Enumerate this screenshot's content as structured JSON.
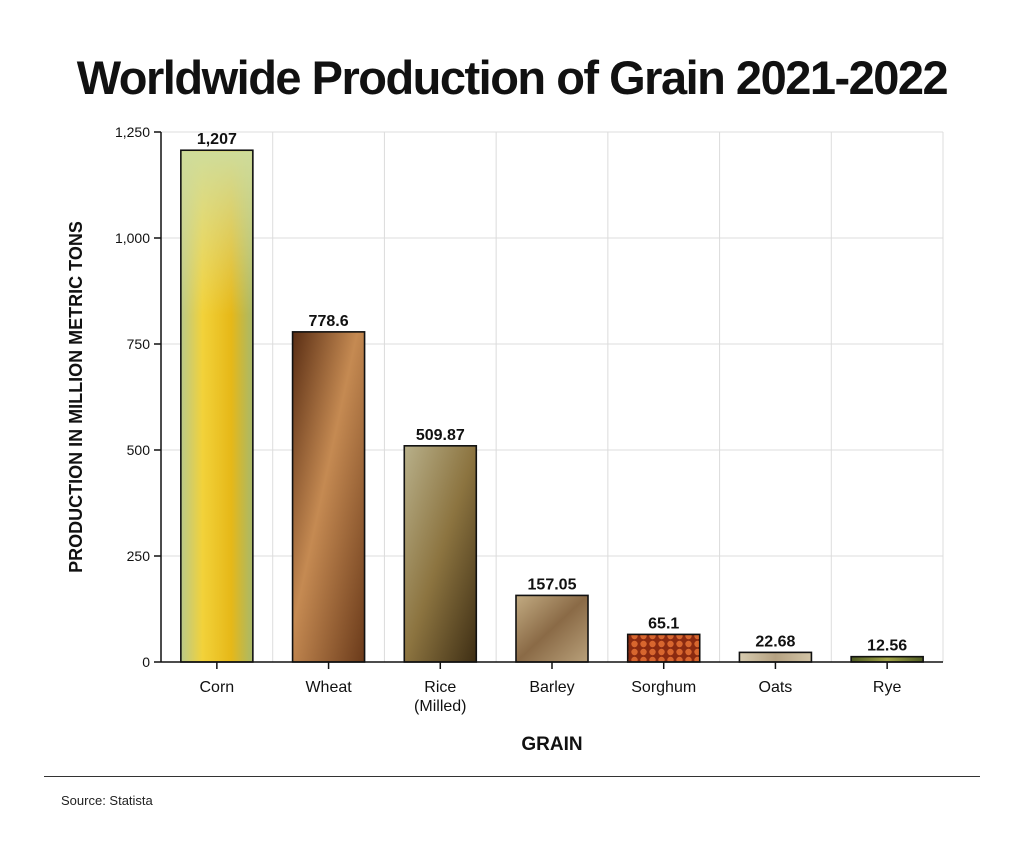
{
  "chart_data": {
    "type": "bar",
    "title": "Worldwide Production of Grain 2021-2022",
    "xlabel": "GRAIN",
    "ylabel": "PRODUCTION IN MILLION METRIC TONS",
    "categories": [
      "Corn",
      "Wheat",
      "Rice (Milled)",
      "Barley",
      "Sorghum",
      "Oats",
      "Rye"
    ],
    "category_lines": [
      [
        "Corn"
      ],
      [
        "Wheat"
      ],
      [
        "Rice",
        "(Milled)"
      ],
      [
        "Barley"
      ],
      [
        "Sorghum"
      ],
      [
        "Oats"
      ],
      [
        "Rye"
      ]
    ],
    "values": [
      1207,
      778.6,
      509.87,
      157.05,
      65.1,
      22.68,
      12.56
    ],
    "value_labels": [
      "1,207",
      "778.6",
      "509.87",
      "157.05",
      "65.1",
      "22.68",
      "12.56"
    ],
    "yticks": [
      0,
      250,
      500,
      750,
      1000,
      1250
    ],
    "ytick_labels": [
      "0",
      "250",
      "500",
      "750",
      "1,000",
      "1,250"
    ],
    "ylim": [
      0,
      1250
    ],
    "grid": true,
    "bar_colors": [
      "#e6c52a",
      "#a86a3a",
      "#8a7a4a",
      "#a08660",
      "#c8542a",
      "#c9b89a",
      "#6f7a3c"
    ]
  },
  "footer": {
    "source": "Source: Statista"
  }
}
